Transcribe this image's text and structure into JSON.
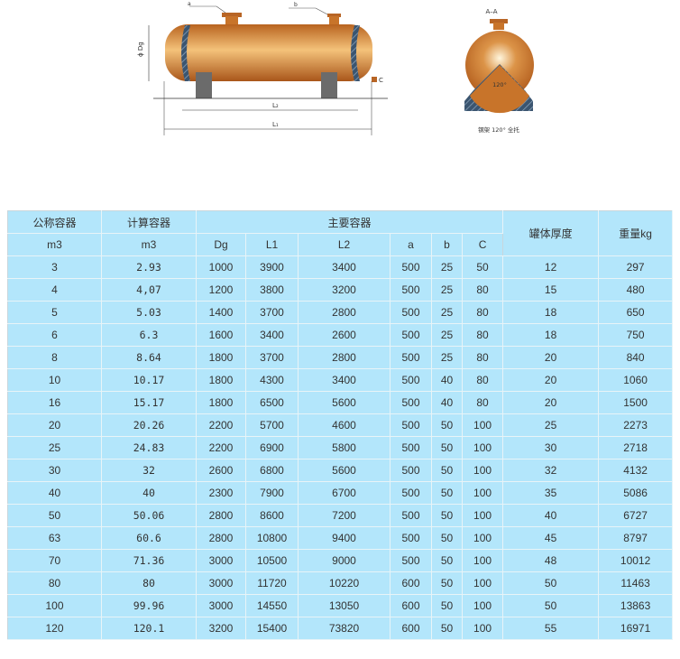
{
  "diagram": {
    "label_a": "a",
    "label_b": "b",
    "label_dg": "ϕ Dg",
    "label_l2": "L₂",
    "label_l1": "L₁",
    "label_c": "C",
    "section_label": "A–A",
    "angle_label": "120°",
    "caption": "钢架 120° 全托",
    "tank_color": "#c8742a",
    "base_color": "#3b5570"
  },
  "table": {
    "header": {
      "nominal": "公称容器",
      "nominal_unit": "m3",
      "calc": "计算容器",
      "calc_unit": "m3",
      "main": "主要容器",
      "sub": [
        "Dg",
        "L1",
        "L2",
        "a",
        "b",
        "C"
      ],
      "thickness": "罐体厚度",
      "weight": "重量kg"
    },
    "rows": [
      [
        "3",
        "2.93",
        "1000",
        "3900",
        "3400",
        "500",
        "25",
        "50",
        "12",
        "297"
      ],
      [
        "4",
        "4,07",
        "1200",
        "3800",
        "3200",
        "500",
        "25",
        "80",
        "15",
        "480"
      ],
      [
        "5",
        "5.03",
        "1400",
        "3700",
        "2800",
        "500",
        "25",
        "80",
        "18",
        "650"
      ],
      [
        "6",
        "6.3",
        "1600",
        "3400",
        "2600",
        "500",
        "25",
        "80",
        "18",
        "750"
      ],
      [
        "8",
        "8.64",
        "1800",
        "3700",
        "2800",
        "500",
        "25",
        "80",
        "20",
        "840"
      ],
      [
        "10",
        "10.17",
        "1800",
        "4300",
        "3400",
        "500",
        "40",
        "80",
        "20",
        "1060"
      ],
      [
        "16",
        "15.17",
        "1800",
        "6500",
        "5600",
        "500",
        "40",
        "80",
        "20",
        "1500"
      ],
      [
        "20",
        "20.26",
        "2200",
        "5700",
        "4600",
        "500",
        "50",
        "100",
        "25",
        "2273"
      ],
      [
        "25",
        "24.83",
        "2200",
        "6900",
        "5800",
        "500",
        "50",
        "100",
        "30",
        "2718"
      ],
      [
        "30",
        "32",
        "2600",
        "6800",
        "5600",
        "500",
        "50",
        "100",
        "32",
        "4132"
      ],
      [
        "40",
        "40",
        "2300",
        "7900",
        "6700",
        "500",
        "50",
        "100",
        "35",
        "5086"
      ],
      [
        "50",
        "50.06",
        "2800",
        "8600",
        "7200",
        "500",
        "50",
        "100",
        "40",
        "6727"
      ],
      [
        "63",
        "60.6",
        "2800",
        "10800",
        "9400",
        "500",
        "50",
        "100",
        "45",
        "8797"
      ],
      [
        "70",
        "71.36",
        "3000",
        "10500",
        "9000",
        "500",
        "50",
        "100",
        "48",
        "10012"
      ],
      [
        "80",
        "80",
        "3000",
        "11720",
        "10220",
        "600",
        "50",
        "100",
        "50",
        "11463"
      ],
      [
        "100",
        "99.96",
        "3000",
        "14550",
        "13050",
        "600",
        "50",
        "100",
        "50",
        "13863"
      ],
      [
        "120",
        "120.1",
        "3200",
        "15400",
        "73820",
        "600",
        "50",
        "100",
        "55",
        "16971"
      ]
    ]
  }
}
